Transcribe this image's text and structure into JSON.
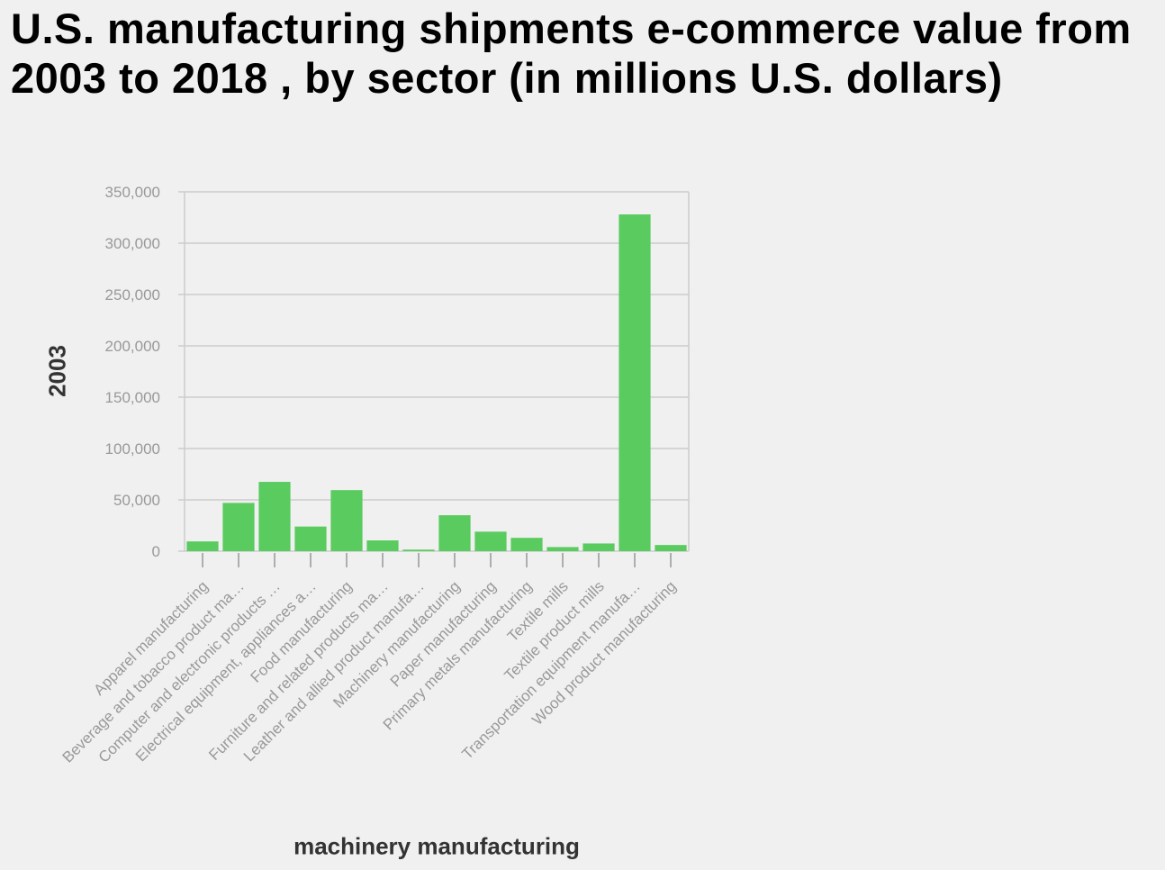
{
  "chart_data": {
    "type": "bar",
    "title": "U.S. manufacturing shipments e-commerce value from 2003 to 2018 , by sector (in millions U.S. dollars)",
    "xlabel": "machinery manufacturing",
    "ylabel": "2003",
    "ylim": [
      0,
      350000
    ],
    "yticks": [
      0,
      50000,
      100000,
      150000,
      200000,
      250000,
      300000,
      350000
    ],
    "ytick_labels": [
      "0",
      "50,000",
      "100,000",
      "150,000",
      "200,000",
      "250,000",
      "300,000",
      "350,000"
    ],
    "grid": true,
    "legend": "none",
    "bar_color": "#59cb5f",
    "categories": [
      "Apparel manufacturing",
      "Beverage and tobacco product ma…",
      "Computer and electronic products …",
      "Electrical equipment, appliances a…",
      "Food manufacturing",
      "Furniture and related products ma…",
      "Leather and allied product manufa…",
      "Machinery manufacturing",
      "Paper manufacturing",
      "Primary metals manufacturing",
      "Textile mills",
      "Textile product mills",
      "Transportation equipment manufa…",
      "Wood product manufacturing"
    ],
    "values": [
      9500,
      47000,
      67500,
      24000,
      59500,
      10500,
      1500,
      35000,
      19000,
      13000,
      4000,
      7500,
      328000,
      6000
    ]
  }
}
